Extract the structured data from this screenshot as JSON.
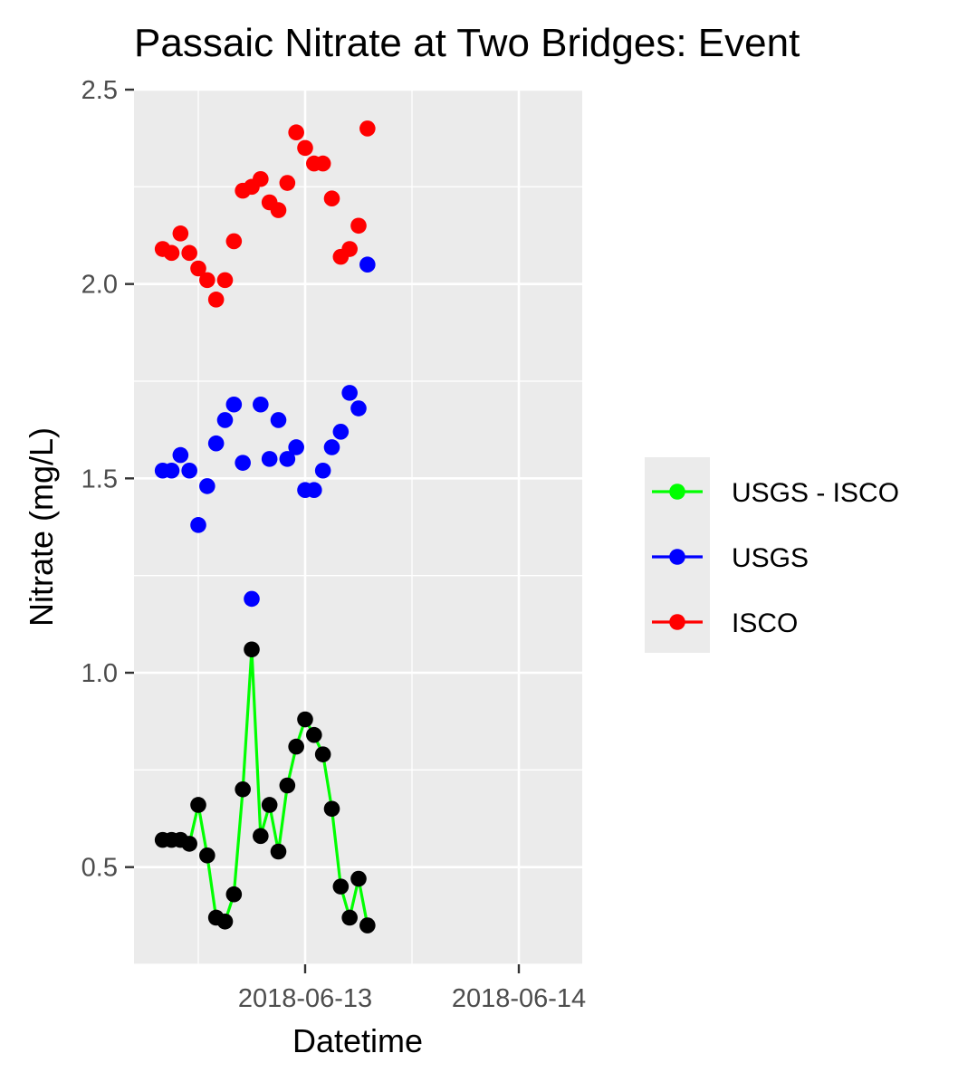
{
  "chart_data": {
    "type": "line",
    "title": "Passaic Nitrate at Two Bridges: Event",
    "xlabel": "Datetime",
    "ylabel": "Nitrate (mg/L)",
    "ylim": [
      0.25,
      2.5
    ],
    "y_ticks": [
      0.5,
      1.0,
      1.5,
      2.0,
      2.5
    ],
    "y_tick_labels": [
      "0.5",
      "1.0",
      "1.5",
      "2.0",
      "2.5"
    ],
    "x_tick_labels": [
      "2018-06-13",
      "2018-06-14"
    ],
    "x_ticks": [
      "2018-06-13 00:00",
      "2018-06-14 00:00"
    ],
    "x": [
      "2018-06-12 08:00",
      "2018-06-12 09:00",
      "2018-06-12 10:00",
      "2018-06-12 11:00",
      "2018-06-12 12:00",
      "2018-06-12 13:00",
      "2018-06-12 14:00",
      "2018-06-12 15:00",
      "2018-06-12 16:00",
      "2018-06-12 17:00",
      "2018-06-12 18:00",
      "2018-06-12 19:00",
      "2018-06-12 20:00",
      "2018-06-12 21:00",
      "2018-06-12 22:00",
      "2018-06-12 23:00",
      "2018-06-13 00:00",
      "2018-06-13 01:00",
      "2018-06-13 02:00",
      "2018-06-13 03:00",
      "2018-06-13 04:00",
      "2018-06-13 05:00",
      "2018-06-13 06:00",
      "2018-06-13 07:00",
      "2018-06-13 08:00"
    ],
    "grid": true,
    "legend_position": "right",
    "series": [
      {
        "name": "ISCO",
        "color": "#ff0000",
        "style": "points",
        "values": [
          2.09,
          2.08,
          2.13,
          2.08,
          2.04,
          2.01,
          1.96,
          2.01,
          2.11,
          2.24,
          2.25,
          2.27,
          2.21,
          2.19,
          2.26,
          2.39,
          2.35,
          2.31,
          2.31,
          2.22,
          2.07,
          2.09,
          2.15,
          2.4,
          null
        ]
      },
      {
        "name": "USGS",
        "color": "#0000ff",
        "style": "points",
        "values": [
          1.52,
          1.52,
          1.56,
          1.52,
          1.38,
          1.48,
          1.59,
          1.65,
          1.69,
          1.54,
          1.19,
          1.69,
          1.55,
          1.65,
          1.55,
          1.58,
          1.47,
          1.47,
          1.52,
          1.58,
          1.62,
          1.72,
          1.68,
          2.05,
          null
        ]
      },
      {
        "name": "USGS - ISCO",
        "color": "#00ff00",
        "point_color": "#000000",
        "style": "line+points",
        "values": [
          0.57,
          0.57,
          0.57,
          0.56,
          0.66,
          0.53,
          0.37,
          0.36,
          0.43,
          0.7,
          1.06,
          0.58,
          0.66,
          0.54,
          0.71,
          0.81,
          0.88,
          0.84,
          0.79,
          0.65,
          0.45,
          0.37,
          0.47,
          0.35,
          null
        ]
      }
    ],
    "legend": [
      {
        "label": "USGS - ISCO",
        "color": "#00ff00"
      },
      {
        "label": "USGS",
        "color": "#0000ff"
      },
      {
        "label": "ISCO",
        "color": "#ff0000"
      }
    ]
  }
}
